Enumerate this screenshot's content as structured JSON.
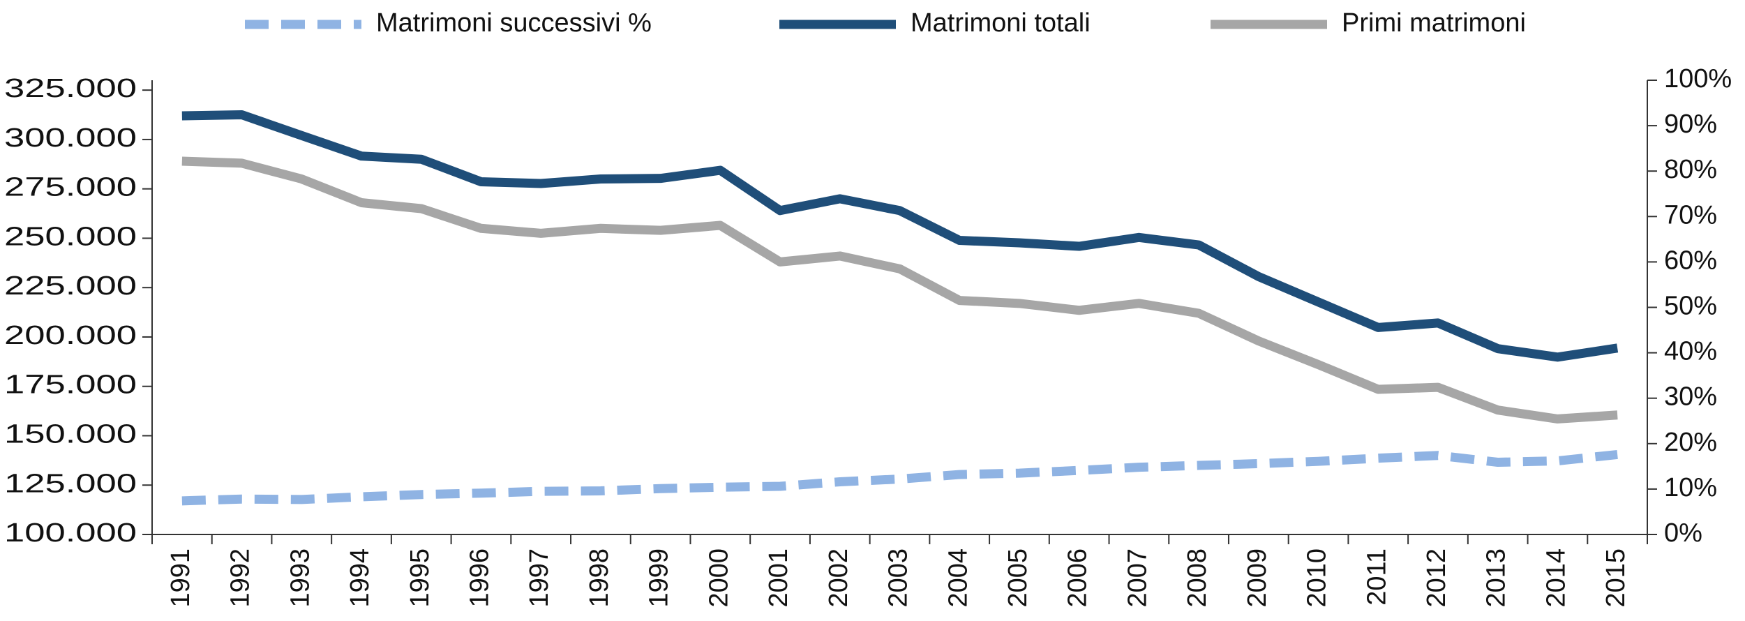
{
  "chart_data": {
    "type": "line",
    "categories": [
      "1991",
      "1992",
      "1993",
      "1994",
      "1995",
      "1996",
      "1997",
      "1998",
      "1999",
      "2000",
      "2001",
      "2002",
      "2003",
      "2004",
      "2005",
      "2006",
      "2007",
      "2008",
      "2009",
      "2010",
      "2011",
      "2012",
      "2013",
      "2014",
      "2015"
    ],
    "series": [
      {
        "name": "Matrimoni successivi %",
        "color": "#8fb3e3",
        "dashed": true,
        "axis": "y2",
        "values": [
          7.4,
          7.8,
          7.7,
          8.3,
          8.8,
          9.1,
          9.5,
          9.6,
          10.1,
          10.4,
          10.6,
          11.6,
          12.2,
          13.2,
          13.5,
          14.1,
          14.8,
          15.2,
          15.6,
          16.1,
          16.8,
          17.4,
          15.9,
          16.2,
          17.6
        ]
      },
      {
        "name": "Matrimoni totali",
        "color": "#1f4e79",
        "values": [
          312000,
          312500,
          302000,
          291600,
          290000,
          278600,
          277700,
          280000,
          280300,
          284400,
          264000,
          270000,
          264000,
          248900,
          247700,
          245900,
          250400,
          246600,
          230600,
          217700,
          204800,
          207100,
          194100,
          189800,
          194400
        ]
      },
      {
        "name": "Primi matrimoni",
        "color": "#a6a6a6",
        "values": [
          289000,
          288000,
          280000,
          268000,
          265000,
          255000,
          252500,
          255000,
          254000,
          256500,
          238000,
          241000,
          234500,
          218500,
          217000,
          213500,
          217000,
          212000,
          198000,
          186000,
          173500,
          174500,
          163000,
          158500,
          160500
        ]
      }
    ],
    "ylim": [
      100000,
      330000
    ],
    "yticks": [
      {
        "value": 100000,
        "label": "100.000"
      },
      {
        "value": 125000,
        "label": "125.000"
      },
      {
        "value": 150000,
        "label": "150.000"
      },
      {
        "value": 175000,
        "label": "175.000"
      },
      {
        "value": 200000,
        "label": "200.000"
      },
      {
        "value": 225000,
        "label": "225.000"
      },
      {
        "value": 250000,
        "label": "250.000"
      },
      {
        "value": 275000,
        "label": "275.000"
      },
      {
        "value": 300000,
        "label": "300.000"
      },
      {
        "value": 325000,
        "label": "325.000"
      }
    ],
    "y2lim": [
      0,
      100
    ],
    "y2ticks": [
      {
        "value": 0,
        "label": "0%"
      },
      {
        "value": 10,
        "label": "10%"
      },
      {
        "value": 20,
        "label": "20%"
      },
      {
        "value": 30,
        "label": "30%"
      },
      {
        "value": 40,
        "label": "40%"
      },
      {
        "value": 50,
        "label": "50%"
      },
      {
        "value": 60,
        "label": "60%"
      },
      {
        "value": 70,
        "label": "70%"
      },
      {
        "value": 80,
        "label": "80%"
      },
      {
        "value": 90,
        "label": "90%"
      },
      {
        "value": 100,
        "label": "100%"
      }
    ],
    "legend": "top"
  }
}
